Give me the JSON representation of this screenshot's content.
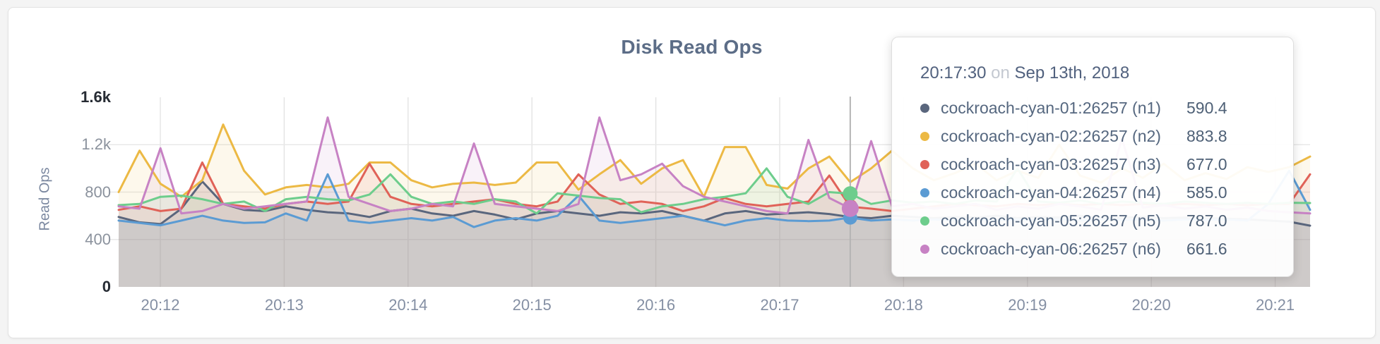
{
  "card": {
    "title": "Disk Read Ops"
  },
  "y_axis": {
    "title": "Read Ops",
    "ticks": [
      {
        "label": "0",
        "value": 0,
        "emphasis": true,
        "grid": false
      },
      {
        "label": "400",
        "value": 400,
        "emphasis": false,
        "grid": true
      },
      {
        "label": "800",
        "value": 800,
        "emphasis": false,
        "grid": true
      },
      {
        "label": "1.2k",
        "value": 1200,
        "emphasis": false,
        "grid": true
      },
      {
        "label": "1.6k",
        "value": 1600,
        "emphasis": true,
        "grid": false
      }
    ]
  },
  "x_axis": {
    "ticks": [
      "20:12",
      "20:13",
      "20:14",
      "20:15",
      "20:16",
      "20:17",
      "20:18",
      "20:19",
      "20:20",
      "20:21"
    ]
  },
  "tooltip": {
    "time": "20:17:30",
    "conjunction": "on",
    "date": "Sep 13th, 2018",
    "rows": [
      {
        "label": "cockroach-cyan-01:26257 (n1)",
        "value": "590.4",
        "color": "#5a667d"
      },
      {
        "label": "cockroach-cyan-02:26257 (n2)",
        "value": "883.8",
        "color": "#ecb944"
      },
      {
        "label": "cockroach-cyan-03:26257 (n3)",
        "value": "677.0",
        "color": "#e06258"
      },
      {
        "label": "cockroach-cyan-04:26257 (n4)",
        "value": "585.0",
        "color": "#5b9bd3"
      },
      {
        "label": "cockroach-cyan-05:26257 (n5)",
        "value": "787.0",
        "color": "#6dcd8c"
      },
      {
        "label": "cockroach-cyan-06:26257 (n6)",
        "value": "661.6",
        "color": "#c782c4"
      }
    ]
  },
  "chart_data": {
    "type": "area",
    "title": "Disk Read Ops",
    "ylabel": "Read Ops",
    "ylim": [
      0,
      1600
    ],
    "x_start": "20:11:40",
    "x_interval_seconds": 10,
    "x_tick_labels": [
      "20:12",
      "20:13",
      "20:14",
      "20:15",
      "20:16",
      "20:17",
      "20:18",
      "20:19",
      "20:20",
      "20:21"
    ],
    "grid": true,
    "legend_position": "tooltip",
    "crosshair": {
      "time": "20:17:30",
      "index": 35,
      "dots": [
        {
          "series": "cockroach-cyan-03:26257 (n3)",
          "value": 677,
          "color": "#e06258",
          "r": 10.5
        },
        {
          "series": "cockroach-cyan-05:26257 (n5)",
          "value": 787,
          "color": "#6dcd8c",
          "r": 10.5
        },
        {
          "series": "cockroach-cyan-04:26257 (n4)",
          "value": 585,
          "color": "#5b9bd3",
          "r": 10
        },
        {
          "series": "cockroach-cyan-06:26257 (n6)",
          "value": 661.6,
          "color": "#c782c4",
          "r": 12
        }
      ]
    },
    "series": [
      {
        "name": "cockroach-cyan-01:26257 (n1)",
        "color": "#5a667d",
        "values": [
          590,
          545,
          530,
          660,
          890,
          700,
          650,
          640,
          680,
          650,
          630,
          620,
          590,
          640,
          660,
          620,
          600,
          640,
          610,
          570,
          620,
          640,
          620,
          600,
          630,
          620,
          640,
          600,
          560,
          620,
          640,
          610,
          620,
          630,
          615,
          590,
          580,
          600,
          590,
          580,
          590,
          585,
          600,
          580,
          590,
          585,
          600,
          580,
          585,
          590,
          580,
          585,
          580,
          575,
          570,
          560,
          550,
          517
        ]
      },
      {
        "name": "cockroach-cyan-02:26257 (n2)",
        "color": "#ecb944",
        "values": [
          800,
          1150,
          870,
          760,
          900,
          1370,
          980,
          780,
          840,
          860,
          840,
          870,
          1050,
          1050,
          900,
          840,
          870,
          880,
          860,
          880,
          1050,
          1050,
          820,
          950,
          1070,
          870,
          1000,
          1070,
          760,
          1180,
          1180,
          860,
          830,
          1000,
          1100,
          884,
          1000,
          1150,
          1000,
          900,
          960,
          1040,
          900,
          980,
          920,
          1200,
          940,
          880,
          1000,
          920,
          1040,
          900,
          960,
          910,
          1010,
          970,
          1010,
          1100
        ]
      },
      {
        "name": "cockroach-cyan-03:26257 (n3)",
        "color": "#e06258",
        "values": [
          650,
          680,
          640,
          660,
          1050,
          700,
          680,
          660,
          700,
          720,
          700,
          720,
          1040,
          760,
          700,
          680,
          700,
          720,
          740,
          700,
          680,
          720,
          950,
          780,
          700,
          720,
          700,
          640,
          680,
          750,
          700,
          680,
          700,
          720,
          940,
          677,
          660,
          640,
          660,
          680,
          700,
          690,
          680,
          700,
          690,
          700,
          690,
          700,
          690,
          700,
          690,
          700,
          690,
          700,
          690,
          700,
          700,
          950
        ]
      },
      {
        "name": "cockroach-cyan-04:26257 (n4)",
        "color": "#5b9bd3",
        "values": [
          560,
          540,
          520,
          560,
          600,
          560,
          540,
          545,
          620,
          560,
          950,
          560,
          540,
          560,
          580,
          560,
          590,
          505,
          560,
          580,
          560,
          600,
          770,
          560,
          540,
          560,
          580,
          600,
          560,
          520,
          560,
          580,
          560,
          555,
          560,
          585,
          560,
          570,
          560,
          570,
          560,
          570,
          560,
          570,
          565,
          570,
          560,
          570,
          565,
          570,
          560,
          570,
          565,
          570,
          560,
          700,
          980,
          650
        ]
      },
      {
        "name": "cockroach-cyan-05:26257 (n5)",
        "color": "#6dcd8c",
        "values": [
          690,
          700,
          760,
          770,
          740,
          700,
          720,
          640,
          740,
          760,
          740,
          730,
          780,
          950,
          760,
          700,
          720,
          700,
          740,
          720,
          620,
          790,
          770,
          750,
          740,
          630,
          680,
          700,
          740,
          760,
          790,
          1000,
          760,
          700,
          800,
          787,
          700,
          730,
          710,
          720,
          700,
          730,
          720,
          1000,
          720,
          710,
          730,
          700,
          720,
          710,
          700,
          720,
          710,
          700,
          710,
          700,
          710,
          708
        ]
      },
      {
        "name": "cockroach-cyan-06:26257 (n6)",
        "color": "#c782c4",
        "values": [
          680,
          660,
          1170,
          620,
          640,
          700,
          660,
          680,
          700,
          720,
          1430,
          760,
          700,
          640,
          660,
          700,
          680,
          1210,
          700,
          680,
          660,
          640,
          700,
          1430,
          900,
          950,
          1040,
          850,
          760,
          720,
          680,
          640,
          620,
          1240,
          750,
          662,
          1230,
          680,
          700,
          660,
          680,
          700,
          650,
          680,
          660,
          700,
          680,
          650,
          1250,
          670,
          690,
          660,
          680,
          650,
          670,
          640,
          630,
          620
        ]
      }
    ]
  }
}
